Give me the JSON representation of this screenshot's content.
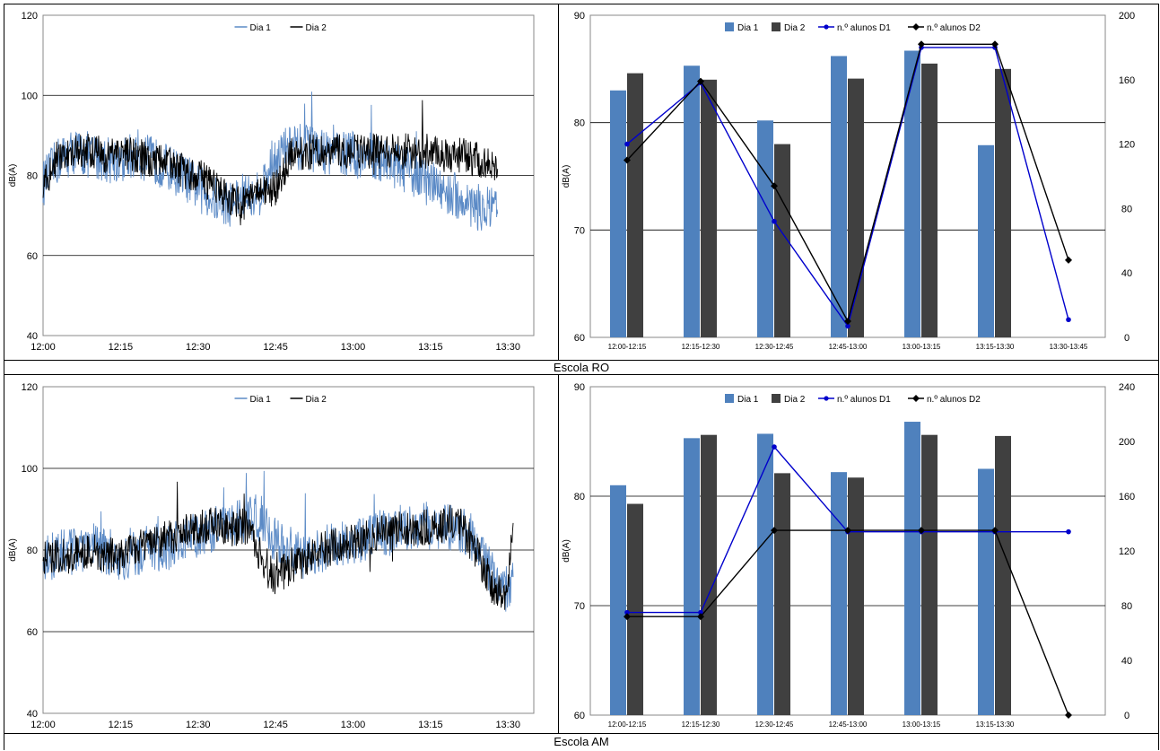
{
  "rows": [
    {
      "caption": "Escola RO",
      "timeseries": {
        "type": "line",
        "ylabel": "dB(A)",
        "ylim": [
          40,
          120
        ],
        "yticks": [
          40,
          60,
          80,
          100,
          120
        ],
        "xticks": [
          "12:00",
          "12:15",
          "12:30",
          "12:45",
          "13:00",
          "13:15",
          "13:30"
        ],
        "legend": [
          "Dia 1",
          "Dia 2"
        ],
        "colors": [
          "#5b8ac6",
          "#000000"
        ],
        "series": [
          {
            "name": "Dia 1",
            "t": [
              0,
              3,
              6,
              9,
              12,
              15,
              18,
              21,
              24,
              27,
              30,
              33,
              36,
              39,
              42,
              45,
              48,
              51,
              54,
              57,
              60,
              63,
              66,
              69,
              72,
              75,
              78,
              81,
              84,
              87,
              88
            ],
            "values": [
              78,
              84,
              86,
              85,
              84,
              84,
              85,
              84,
              82,
              80,
              77,
              74,
              73,
              75,
              76,
              85,
              87,
              87,
              86,
              86,
              85,
              85,
              84,
              82,
              80,
              78,
              76,
              74,
              72,
              71,
              70
            ]
          },
          {
            "name": "Dia 2",
            "t": [
              0,
              3,
              6,
              9,
              12,
              15,
              18,
              21,
              24,
              27,
              30,
              33,
              36,
              39,
              42,
              45,
              48,
              51,
              54,
              57,
              60,
              63,
              66,
              69,
              72,
              75,
              78,
              81,
              84,
              87,
              88
            ],
            "values": [
              78,
              85,
              86,
              86,
              85,
              85,
              85,
              84,
              83,
              81,
              80,
              77,
              74,
              73,
              75,
              77,
              85,
              86,
              86,
              86,
              86,
              86,
              86,
              86,
              86,
              86,
              85,
              85,
              84,
              83,
              79
            ]
          }
        ]
      },
      "bars": {
        "type": "bar",
        "ylabel": "dB(A)",
        "ylim": [
          60,
          90
        ],
        "yticks": [
          60,
          70,
          80,
          90
        ],
        "y2lim": [
          0,
          200
        ],
        "y2ticks": [
          0,
          40,
          80,
          120,
          160,
          200
        ],
        "categories": [
          "12:00-12:15",
          "12:15-12:30",
          "12:30-12:45",
          "12:45-13:00",
          "13:00-13:15",
          "13:15-13:30",
          "13:30-13:45"
        ],
        "legend": [
          "Dia 1",
          "Dia 2",
          "n.º alunos D1",
          "n.º alunos D2"
        ],
        "colors": {
          "dia1": "#4f81bd",
          "dia2": "#404040",
          "d1": "#0000cc",
          "d2": "#000000"
        },
        "series": [
          {
            "name": "Dia 1",
            "values": [
              83.0,
              85.3,
              80.2,
              86.2,
              86.7,
              77.9,
              null
            ]
          },
          {
            "name": "Dia 2",
            "values": [
              84.6,
              84.0,
              78.0,
              84.1,
              85.5,
              85.0,
              null
            ]
          }
        ],
        "lines": [
          {
            "name": "n.º alunos D1",
            "values": [
              120,
              158,
              72,
              7,
              180,
              180,
              11
            ]
          },
          {
            "name": "n.º alunos D2",
            "values": [
              110,
              159,
              94,
              10,
              182,
              182,
              48
            ]
          }
        ]
      }
    },
    {
      "caption": "Escola AM",
      "timeseries": {
        "type": "line",
        "ylabel": "dB(A)",
        "ylim": [
          40,
          120
        ],
        "yticks": [
          40,
          60,
          80,
          100,
          120
        ],
        "xticks": [
          "12:00",
          "12:15",
          "12:30",
          "12:45",
          "13:00",
          "13:15",
          "13:30"
        ],
        "legend": [
          "Dia 1",
          "Dia 2"
        ],
        "colors": [
          "#5b8ac6",
          "#000000"
        ],
        "series": [
          {
            "name": "Dia 1",
            "t": [
              0,
              3,
              6,
              9,
              12,
              15,
              18,
              21,
              24,
              27,
              30,
              33,
              36,
              39,
              42,
              45,
              48,
              51,
              54,
              57,
              60,
              63,
              66,
              69,
              72,
              75,
              78,
              81,
              84,
              87,
              90,
              91
            ],
            "values": [
              78,
              79,
              80,
              81,
              80,
              78,
              79,
              81,
              80,
              82,
              84,
              85,
              86,
              87,
              88,
              82,
              78,
              79,
              80,
              81,
              82,
              83,
              84,
              85,
              86,
              86,
              86,
              85,
              82,
              74,
              70,
              72
            ]
          },
          {
            "name": "Dia 2",
            "t": [
              0,
              3,
              6,
              9,
              12,
              15,
              18,
              21,
              24,
              27,
              30,
              33,
              36,
              39,
              42,
              45,
              48,
              51,
              54,
              57,
              60,
              63,
              66,
              69,
              72,
              75,
              78,
              81,
              84,
              87,
              90,
              91
            ],
            "values": [
              78,
              78,
              79,
              80,
              79,
              78,
              80,
              82,
              83,
              84,
              86,
              86,
              85,
              86,
              79,
              73,
              76,
              78,
              80,
              81,
              82,
              83,
              84,
              85,
              85,
              86,
              86,
              86,
              79,
              71,
              69,
              90
            ]
          }
        ]
      },
      "bars": {
        "type": "bar",
        "ylabel": "dB(A)",
        "ylim": [
          60,
          90
        ],
        "yticks": [
          60,
          70,
          80,
          90
        ],
        "y2lim": [
          0,
          240
        ],
        "y2ticks": [
          0,
          40,
          80,
          120,
          160,
          200,
          240
        ],
        "categories": [
          "12:00-12:15",
          "12:15-12:30",
          "12:30-12:45",
          "12:45-13:00",
          "13:00-13:15",
          "13:15-13:30",
          ""
        ],
        "legend": [
          "Dia 1",
          "Dia 2",
          "n.º alunos D1",
          "n.º alunos D2"
        ],
        "colors": {
          "dia1": "#4f81bd",
          "dia2": "#404040",
          "d1": "#0000cc",
          "d2": "#000000"
        },
        "series": [
          {
            "name": "Dia 1",
            "values": [
              81.0,
              85.3,
              85.7,
              82.2,
              86.8,
              82.5,
              null
            ]
          },
          {
            "name": "Dia 2",
            "values": [
              79.3,
              85.6,
              82.1,
              81.7,
              85.6,
              85.5,
              null
            ]
          }
        ],
        "lines": [
          {
            "name": "n.º alunos D1",
            "values": [
              75,
              75,
              196,
              134,
              134,
              134,
              134
            ]
          },
          {
            "name": "n.º alunos D2",
            "values": [
              72,
              72,
              135,
              135,
              135,
              135,
              0
            ]
          }
        ]
      }
    }
  ]
}
